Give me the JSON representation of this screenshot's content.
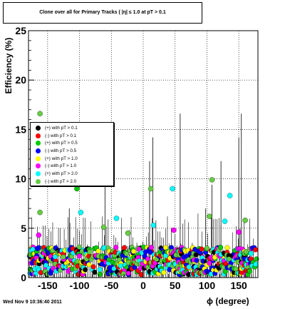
{
  "chart_data": {
    "type": "scatter",
    "title": "Clone  over all for Primary Tracks ( |η| ≤ 1.0 at pT > 0.1",
    "xlabel": "ϕ (degree)",
    "ylabel": "Efficiency (%)",
    "xlim": [
      -180,
      180
    ],
    "ylim": [
      0,
      25
    ],
    "xticks": [
      -150,
      -100,
      -50,
      0,
      50,
      100,
      150
    ],
    "yticks": [
      0,
      5,
      10,
      15,
      20,
      25
    ],
    "grid": true,
    "legend_position": "middle-left",
    "series": [
      {
        "name": "(+) with pT > 0.1",
        "color": "#000000"
      },
      {
        "name": "(-) with pT > 0.1",
        "color": "#ff0000"
      },
      {
        "name": "(+) with pT > 0.5",
        "color": "#00cc00"
      },
      {
        "name": "(-) with pT > 0.5",
        "color": "#0000ff"
      },
      {
        "name": "(+) with pT > 1.0",
        "color": "#ffff00"
      },
      {
        "name": "(-) with pT > 1.0",
        "color": "#ff00ff"
      },
      {
        "name": "(+) with pT > 2.0",
        "color": "#00ffff"
      },
      {
        "name": "(-) with pT > 2.0",
        "color": "#66cc44"
      }
    ],
    "highlighted_points": [
      {
        "series": 7,
        "x": -162,
        "y": 16.6
      },
      {
        "series": 7,
        "x": -162,
        "y": 6.6
      },
      {
        "series": 2,
        "x": -104,
        "y": 9.0
      },
      {
        "series": 6,
        "x": -98,
        "y": 6.6
      },
      {
        "series": 7,
        "x": 12,
        "y": 9.0
      },
      {
        "series": 6,
        "x": 46,
        "y": 9.0
      },
      {
        "series": 7,
        "x": 108,
        "y": 9.9
      },
      {
        "series": 6,
        "x": 136,
        "y": 8.3
      },
      {
        "series": 7,
        "x": 160,
        "y": 5.8
      },
      {
        "series": 7,
        "x": 104,
        "y": 6.2
      },
      {
        "series": 6,
        "x": -42,
        "y": 6.0
      },
      {
        "series": 7,
        "x": -62,
        "y": 5.1
      },
      {
        "series": 7,
        "x": -24,
        "y": 4.5
      },
      {
        "series": 5,
        "x": -164,
        "y": 4.3
      },
      {
        "series": 6,
        "x": 16,
        "y": 5.3
      },
      {
        "series": 5,
        "x": 48,
        "y": 4.8
      },
      {
        "series": 5,
        "x": 150,
        "y": 4.6
      },
      {
        "series": 6,
        "x": 128,
        "y": 5.7
      }
    ],
    "tall_error_bar_x": [
      -116,
      -60,
      10,
      15,
      58,
      98,
      108,
      122,
      150,
      154
    ]
  },
  "title_text": "Clone  over all for Primary Tracks ( |η| ≤ 1.0 at pT > 0.1",
  "axis": {
    "ylabel": "Efficiency (%)",
    "xlabel": "ϕ (degree)"
  },
  "footer": {
    "datestamp": "Wed Nov  9 10:36:40 2011"
  },
  "legend": [
    {
      "label": "(+) with pT > 0.1",
      "color": "#000000"
    },
    {
      "label": "(-) with pT > 0.1",
      "color": "#ff0000"
    },
    {
      "label": "(+) with pT > 0.5",
      "color": "#00cc00"
    },
    {
      "label": "(-) with pT > 0.5",
      "color": "#0000ff"
    },
    {
      "label": "(+) with pT > 1.0",
      "color": "#ffff00"
    },
    {
      "label": "(-) with pT > 1.0",
      "color": "#ff00ff"
    },
    {
      "label": "(+) with pT > 2.0",
      "color": "#00ffff"
    },
    {
      "label": "(-) with pT > 2.0",
      "color": "#66cc44"
    }
  ]
}
